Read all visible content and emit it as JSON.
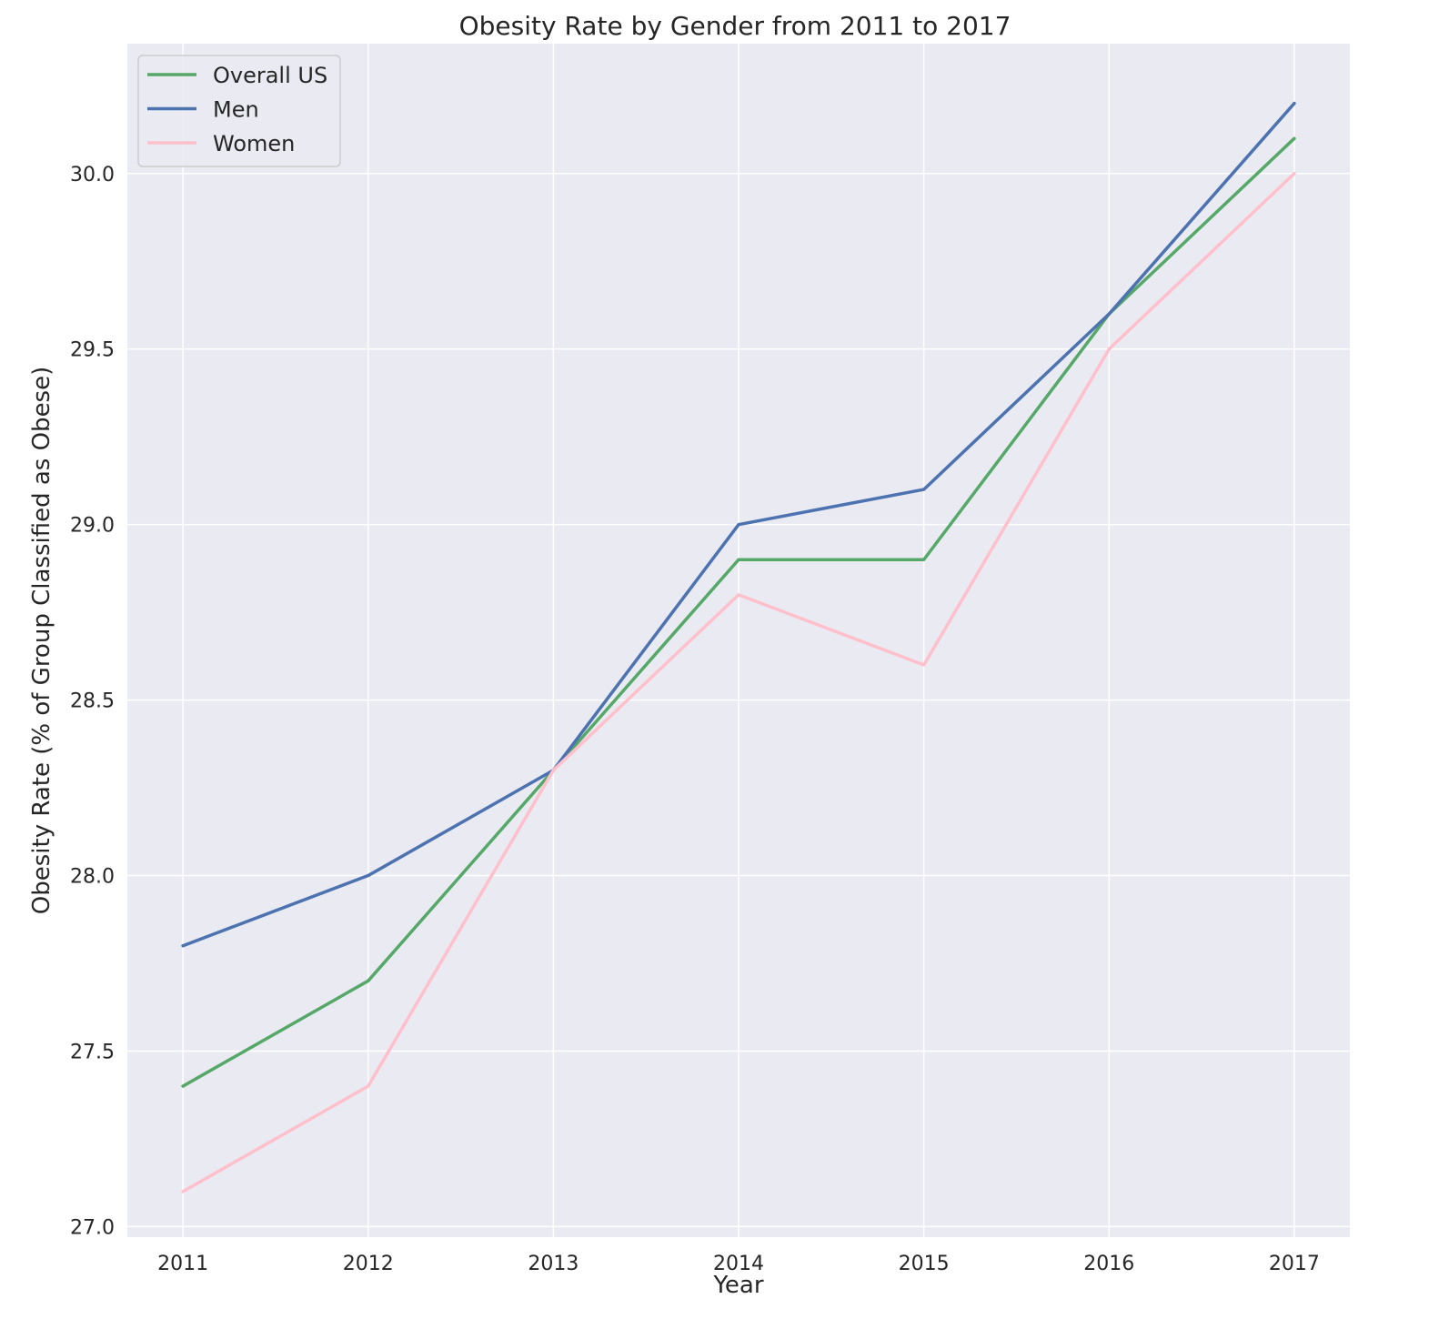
{
  "chart_data": {
    "type": "line",
    "title": "Obesity Rate by Gender from 2011 to 2017",
    "xlabel": "Year",
    "ylabel": "Obesity Rate (% of Group Classified as Obese)",
    "x": [
      2011,
      2012,
      2013,
      2014,
      2015,
      2016,
      2017
    ],
    "x_tick_labels": [
      "2011",
      "2012",
      "2013",
      "2014",
      "2015",
      "2016",
      "2017"
    ],
    "xlim": [
      2010.7,
      2017.3
    ],
    "ylim": [
      26.97,
      30.37
    ],
    "y_ticks": [
      27.0,
      27.5,
      28.0,
      28.5,
      29.0,
      29.5,
      30.0
    ],
    "y_tick_labels": [
      "27.0",
      "27.5",
      "28.0",
      "28.5",
      "29.0",
      "29.5",
      "30.0"
    ],
    "grid": true,
    "background_color": "#eaeaf2",
    "grid_color": "#ffffff",
    "legend_position": "upper-left",
    "series": [
      {
        "name": "Overall US",
        "color": "#55a868",
        "values": [
          27.4,
          27.7,
          28.3,
          28.9,
          28.9,
          29.6,
          30.1
        ]
      },
      {
        "name": "Men",
        "color": "#4c72b0",
        "values": [
          27.8,
          28.0,
          28.3,
          29.0,
          29.1,
          29.6,
          30.2
        ]
      },
      {
        "name": "Women",
        "color": "#ffc0cb",
        "values": [
          27.1,
          27.4,
          28.3,
          28.8,
          28.6,
          29.5,
          30.0
        ]
      }
    ]
  }
}
